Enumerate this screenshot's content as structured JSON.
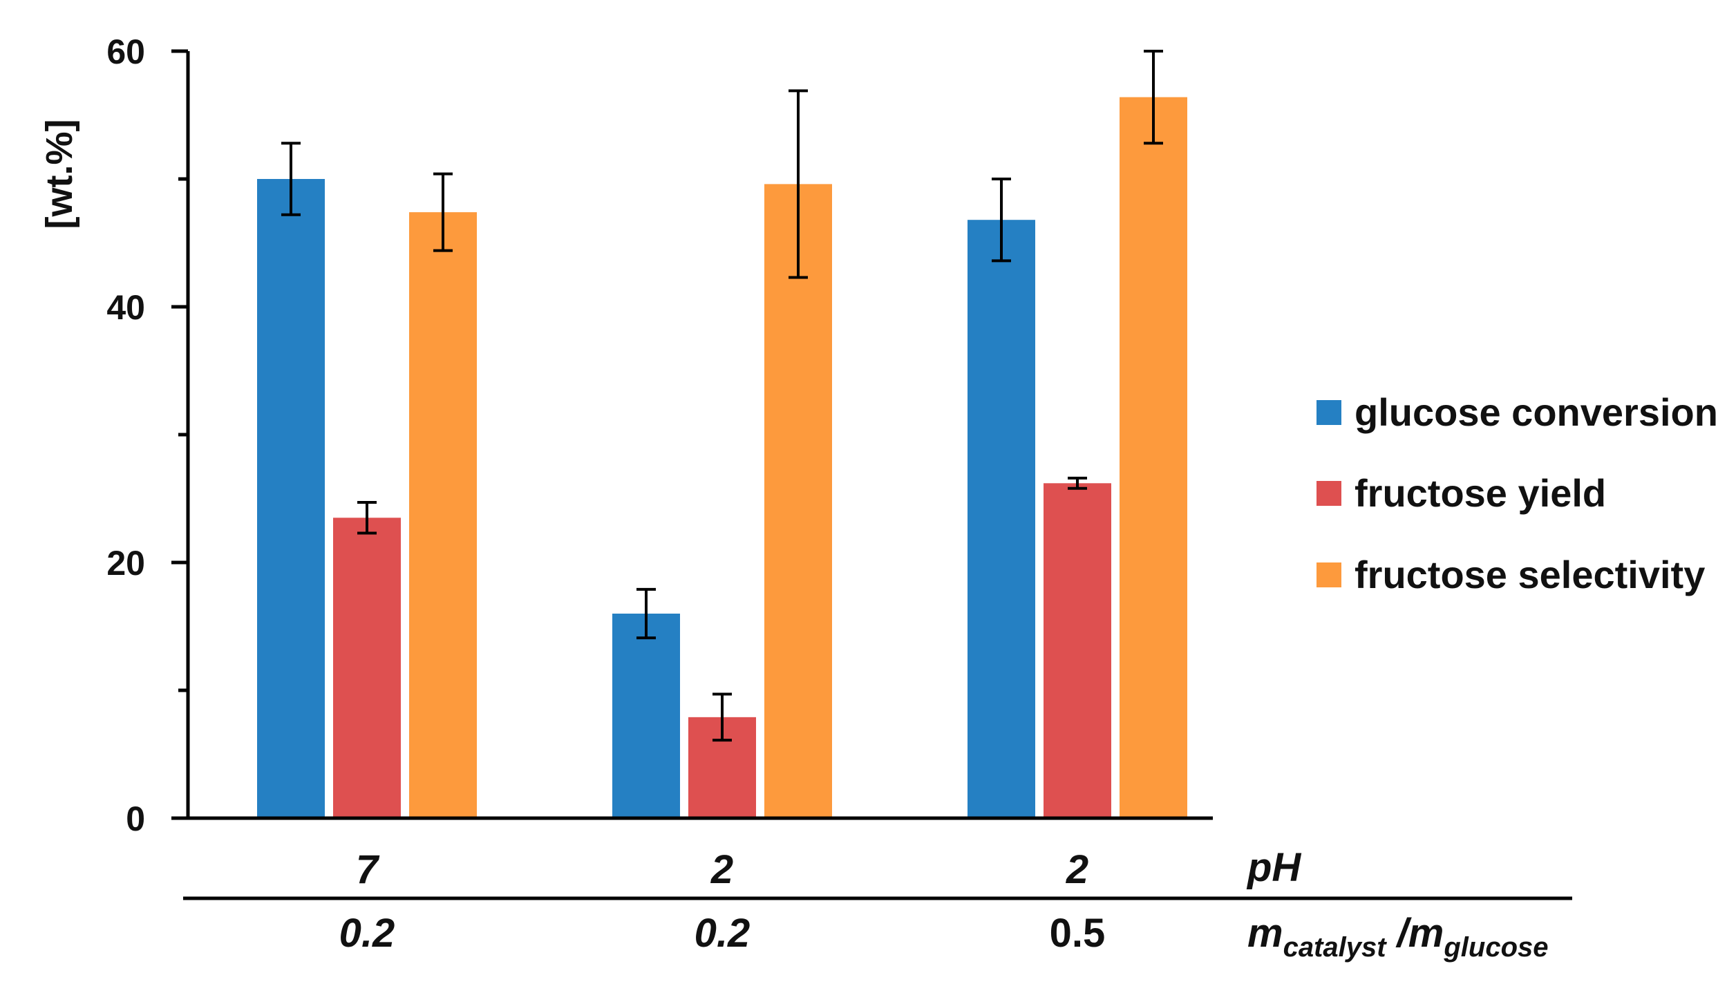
{
  "chart_data": {
    "type": "bar",
    "title": "",
    "xlabel": "",
    "ylabel": "[wt.%]",
    "ylim": [
      0,
      60
    ],
    "yticks": [
      0,
      20,
      40,
      60
    ],
    "legend_position": "right",
    "categories": [
      {
        "ph": "7",
        "ratio": "0.2"
      },
      {
        "ph": "2",
        "ratio": "0.2"
      },
      {
        "ph": "2",
        "ratio": "0.5"
      }
    ],
    "row_labels": {
      "ph": "pH",
      "ratio_main": "m",
      "ratio_sub1": "catalyst",
      "ratio_sep": " /m",
      "ratio_sub2": "glucose"
    },
    "series": [
      {
        "name": "glucose conversion",
        "color": "#2580c3",
        "values": [
          50,
          16,
          46.8
        ],
        "errors": [
          2.8,
          1.9,
          3.2
        ]
      },
      {
        "name": "fructose yield",
        "color": "#de5050",
        "values": [
          23.5,
          7.9,
          26.2
        ],
        "errors": [
          1.2,
          1.8,
          0.4
        ]
      },
      {
        "name": "fructose selectivity",
        "color": "#fd9a3d",
        "values": [
          47.4,
          49.6,
          56.4
        ],
        "errors": [
          3.0,
          7.3,
          3.6
        ]
      }
    ]
  }
}
